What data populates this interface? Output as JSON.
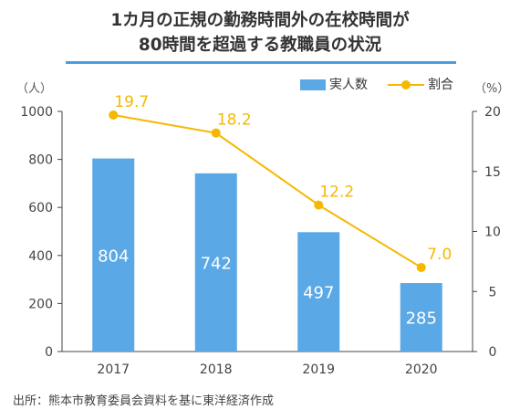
{
  "title_line1": "1カ月の正規の勤務時間外の在校時間が",
  "title_line2": "80時間を超過する教職員の状況",
  "unit_left": "（人）",
  "unit_right": "（%）",
  "source": "出所：熊本市教育委員会資料を基に東洋経済作成",
  "colors": {
    "bar": "#5aa9e6",
    "line": "#f5b800",
    "rule": "#4a9ee0"
  },
  "chart_data": {
    "type": "bar",
    "categories": [
      "2017",
      "2018",
      "2019",
      "2020"
    ],
    "series": [
      {
        "name": "実人数",
        "type": "bar",
        "axis": "left",
        "values": [
          804,
          742,
          497,
          285
        ]
      },
      {
        "name": "割合",
        "type": "line",
        "axis": "right",
        "values": [
          19.7,
          18.2,
          12.2,
          7.0
        ]
      }
    ],
    "y_left": {
      "min": 0,
      "max": 1000,
      "ticks": [
        "0",
        "200",
        "400",
        "600",
        "800",
        "1000"
      ]
    },
    "y_right": {
      "min": 0,
      "max": 20,
      "ticks": [
        "0",
        "5",
        "10",
        "15",
        "20"
      ]
    },
    "bar_labels": [
      "804",
      "742",
      "497",
      "285"
    ],
    "line_labels": [
      "19.7",
      "18.2",
      "12.2",
      "7.0"
    ],
    "grid": false,
    "legend_position": "top-right"
  }
}
